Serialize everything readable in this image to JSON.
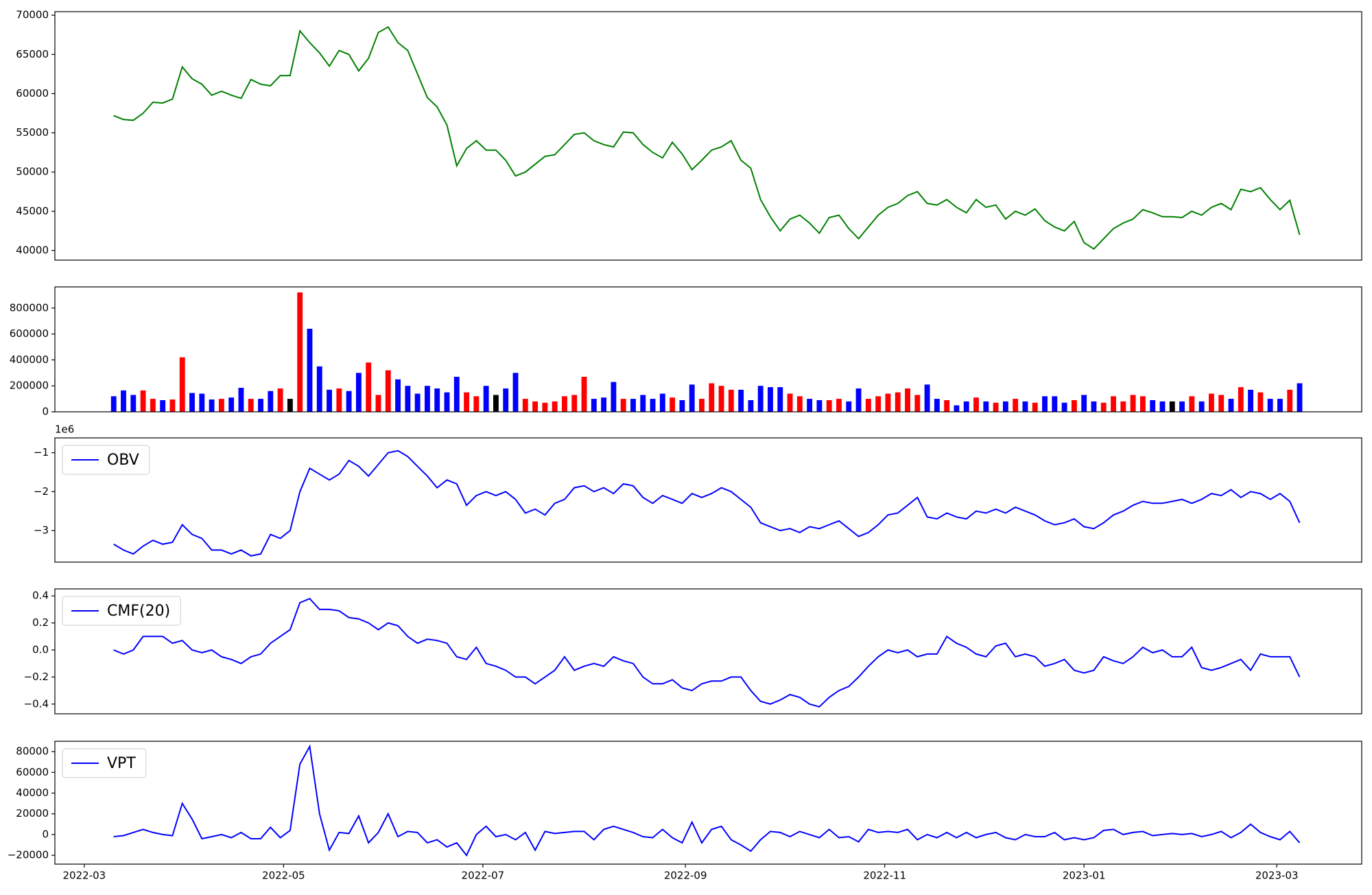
{
  "chart_data": [
    {
      "type": "line",
      "ylim": [
        38770,
        70450
      ],
      "yticks": [
        40000,
        45000,
        50000,
        55000,
        60000,
        65000,
        70000
      ],
      "series": [
        {
          "color": "green",
          "values": [
            57200,
            56700,
            56600,
            57500,
            58900,
            58800,
            59300,
            63400,
            61900,
            61200,
            59800,
            60300,
            59800,
            59400,
            61800,
            61200,
            61000,
            62300,
            62300,
            68000,
            66500,
            65200,
            63500,
            65500,
            65000,
            62900,
            64500,
            67800,
            68500,
            66500,
            65500,
            62500,
            59500,
            58300,
            56000,
            50800,
            53000,
            54000,
            52800,
            52800,
            51500,
            49500,
            50000,
            51000,
            52000,
            52200,
            53500,
            54800,
            55000,
            54000,
            53500,
            53200,
            55100,
            55000,
            53500,
            52500,
            51800,
            53800,
            52300,
            50300,
            51500,
            52800,
            53200,
            54000,
            51500,
            50500,
            46500,
            44300,
            42500,
            44000,
            44500,
            43500,
            42200,
            44200,
            44500,
            42800,
            41500,
            43000,
            44500,
            45500,
            46000,
            47000,
            47500,
            46000,
            45800,
            46500,
            45500,
            44800,
            46500,
            45500,
            45800,
            44000,
            45000,
            44500,
            45300,
            43800,
            43000,
            42500,
            43700,
            41000,
            40200,
            41500,
            42800,
            43500,
            44000,
            45200,
            44800,
            44300,
            44300,
            44200,
            45000,
            44500,
            45500,
            46000,
            45200,
            47800,
            47500,
            48000,
            46500,
            45200,
            46400,
            42000
          ]
        }
      ]
    },
    {
      "type": "bar",
      "ylim": [
        0,
        962700
      ],
      "yticks": [
        0,
        200000,
        400000,
        600000,
        800000
      ],
      "values": [
        120000,
        165000,
        130000,
        165000,
        100000,
        90000,
        95000,
        420000,
        145000,
        140000,
        95000,
        100000,
        110000,
        185000,
        100000,
        100000,
        160000,
        180000,
        100000,
        920000,
        640000,
        350000,
        170000,
        180000,
        160000,
        300000,
        380000,
        130000,
        320000,
        250000,
        200000,
        140000,
        200000,
        180000,
        150000,
        270000,
        150000,
        120000,
        200000,
        130000,
        180000,
        300000,
        100000,
        80000,
        70000,
        80000,
        120000,
        130000,
        270000,
        100000,
        110000,
        230000,
        100000,
        100000,
        130000,
        100000,
        140000,
        110000,
        90000,
        210000,
        100000,
        220000,
        200000,
        170000,
        170000,
        90000,
        200000,
        190000,
        190000,
        140000,
        120000,
        100000,
        90000,
        90000,
        100000,
        80000,
        180000,
        100000,
        120000,
        140000,
        150000,
        180000,
        130000,
        210000,
        100000,
        90000,
        50000,
        80000,
        110000,
        80000,
        70000,
        80000,
        100000,
        80000,
        70000,
        120000,
        120000,
        70000,
        90000,
        130000,
        80000,
        70000,
        120000,
        80000,
        130000,
        120000,
        90000,
        80000,
        80000,
        80000,
        120000,
        80000,
        140000,
        130000,
        100000,
        190000,
        170000,
        150000,
        100000,
        100000,
        170000,
        220000
      ],
      "colors": [
        "blue",
        "blue",
        "blue",
        "red",
        "red",
        "blue",
        "red",
        "red",
        "blue",
        "blue",
        "blue",
        "red",
        "blue",
        "blue",
        "red",
        "blue",
        "blue",
        "red",
        "black",
        "red",
        "blue",
        "blue",
        "blue",
        "red",
        "blue",
        "blue",
        "red",
        "red",
        "red",
        "blue",
        "blue",
        "blue",
        "blue",
        "blue",
        "blue",
        "blue",
        "red",
        "red",
        "blue",
        "black",
        "blue",
        "blue",
        "red",
        "red",
        "red",
        "red",
        "red",
        "red",
        "red",
        "blue",
        "blue",
        "blue",
        "red",
        "blue",
        "blue",
        "blue",
        "blue",
        "red",
        "blue",
        "blue",
        "red",
        "red",
        "red",
        "red",
        "blue",
        "blue",
        "blue",
        "blue",
        "blue",
        "red",
        "red",
        "blue",
        "blue",
        "red",
        "red",
        "blue",
        "blue",
        "red",
        "red",
        "red",
        "red",
        "red",
        "red",
        "blue",
        "blue",
        "red",
        "blue",
        "blue",
        "red",
        "blue",
        "red",
        "blue",
        "red",
        "blue",
        "red",
        "blue",
        "blue",
        "blue",
        "red",
        "blue",
        "blue",
        "red",
        "red",
        "red",
        "red",
        "red",
        "blue",
        "blue",
        "black",
        "blue",
        "red",
        "blue",
        "red",
        "red",
        "blue",
        "red",
        "blue",
        "red",
        "blue",
        "blue",
        "red",
        "blue"
      ]
    },
    {
      "type": "line",
      "offset_label": "1e6",
      "legend": "upper left",
      "ylim": [
        -3810000,
        -620000
      ],
      "yticks": [
        {
          "value": -3000000,
          "label": "−3"
        },
        {
          "value": -2000000,
          "label": "−2"
        },
        {
          "value": -1000000,
          "label": "−1"
        }
      ],
      "series": [
        {
          "name": "OBV",
          "color": "blue",
          "values": [
            -3350000,
            -3500000,
            -3600000,
            -3400000,
            -3250000,
            -3350000,
            -3300000,
            -2850000,
            -3100000,
            -3200000,
            -3500000,
            -3500000,
            -3600000,
            -3500000,
            -3650000,
            -3600000,
            -3100000,
            -3200000,
            -3000000,
            -2000000,
            -1400000,
            -1550000,
            -1700000,
            -1550000,
            -1200000,
            -1350000,
            -1600000,
            -1300000,
            -1000000,
            -950000,
            -1100000,
            -1350000,
            -1600000,
            -1900000,
            -1700000,
            -1800000,
            -2350000,
            -2100000,
            -2000000,
            -2100000,
            -2000000,
            -2200000,
            -2550000,
            -2450000,
            -2600000,
            -2300000,
            -2200000,
            -1900000,
            -1850000,
            -2000000,
            -1900000,
            -2050000,
            -1800000,
            -1850000,
            -2150000,
            -2300000,
            -2100000,
            -2200000,
            -2300000,
            -2050000,
            -2150000,
            -2050000,
            -1900000,
            -2000000,
            -2200000,
            -2400000,
            -2800000,
            -2900000,
            -3000000,
            -2950000,
            -3050000,
            -2900000,
            -2950000,
            -2850000,
            -2750000,
            -2950000,
            -3150000,
            -3050000,
            -2850000,
            -2600000,
            -2550000,
            -2350000,
            -2150000,
            -2650000,
            -2700000,
            -2550000,
            -2650000,
            -2700000,
            -2500000,
            -2550000,
            -2450000,
            -2550000,
            -2400000,
            -2500000,
            -2600000,
            -2750000,
            -2850000,
            -2800000,
            -2700000,
            -2900000,
            -2950000,
            -2800000,
            -2600000,
            -2500000,
            -2350000,
            -2250000,
            -2300000,
            -2300000,
            -2250000,
            -2200000,
            -2300000,
            -2200000,
            -2050000,
            -2100000,
            -1950000,
            -2150000,
            -2000000,
            -2050000,
            -2200000,
            -2050000,
            -2250000,
            -2800000
          ]
        }
      ]
    },
    {
      "type": "line",
      "legend": "upper left",
      "ylim": [
        -0.472,
        0.452
      ],
      "yticks": [
        {
          "value": -0.4,
          "label": "−0.4"
        },
        {
          "value": -0.2,
          "label": "−0.2"
        },
        {
          "value": 0,
          "label": "0.0"
        },
        0.2,
        0.4
      ],
      "series": [
        {
          "name": "CMF(20)",
          "color": "blue",
          "values": [
            0.0,
            -0.03,
            0.0,
            0.1,
            0.1,
            0.1,
            0.05,
            0.07,
            0.0,
            -0.02,
            0.0,
            -0.05,
            -0.07,
            -0.1,
            -0.05,
            -0.03,
            0.05,
            0.1,
            0.15,
            0.35,
            0.38,
            0.3,
            0.3,
            0.29,
            0.24,
            0.23,
            0.2,
            0.15,
            0.2,
            0.18,
            0.1,
            0.05,
            0.08,
            0.07,
            0.05,
            -0.05,
            -0.07,
            0.02,
            -0.1,
            -0.12,
            -0.15,
            -0.2,
            -0.2,
            -0.25,
            -0.2,
            -0.15,
            -0.05,
            -0.15,
            -0.12,
            -0.1,
            -0.12,
            -0.05,
            -0.08,
            -0.1,
            -0.2,
            -0.25,
            -0.25,
            -0.22,
            -0.28,
            -0.3,
            -0.25,
            -0.23,
            -0.23,
            -0.2,
            -0.2,
            -0.3,
            -0.38,
            -0.4,
            -0.37,
            -0.33,
            -0.35,
            -0.4,
            -0.42,
            -0.35,
            -0.3,
            -0.27,
            -0.2,
            -0.12,
            -0.05,
            0.0,
            -0.02,
            0.0,
            -0.05,
            -0.03,
            -0.03,
            0.1,
            0.05,
            0.02,
            -0.03,
            -0.05,
            0.03,
            0.05,
            -0.05,
            -0.03,
            -0.05,
            -0.12,
            -0.1,
            -0.07,
            -0.15,
            -0.17,
            -0.15,
            -0.05,
            -0.08,
            -0.1,
            -0.05,
            0.02,
            -0.02,
            0.0,
            -0.05,
            -0.05,
            0.02,
            -0.13,
            -0.15,
            -0.13,
            -0.1,
            -0.07,
            -0.15,
            -0.03,
            -0.05,
            -0.05,
            -0.05,
            -0.2
          ]
        }
      ]
    },
    {
      "type": "line",
      "legend": "upper left",
      "ylim": [
        -28500,
        90000
      ],
      "yticks": [
        {
          "value": -20000,
          "label": "−20000"
        },
        0,
        20000,
        40000,
        60000,
        80000
      ],
      "series": [
        {
          "name": "VPT",
          "color": "blue",
          "values": [
            -2000,
            -1000,
            2000,
            5000,
            2000,
            0,
            -1000,
            30000,
            15000,
            -4000,
            -2000,
            0,
            -3000,
            2000,
            -4000,
            -4000,
            7000,
            -3000,
            4000,
            68000,
            85000,
            20000,
            -15000,
            2000,
            1000,
            18000,
            -8000,
            2000,
            20000,
            -2000,
            3000,
            2000,
            -8000,
            -5000,
            -12000,
            -8000,
            -20000,
            0,
            8000,
            -2000,
            0,
            -5000,
            2000,
            -15000,
            3000,
            1000,
            2000,
            3000,
            3000,
            -5000,
            5000,
            8000,
            5000,
            2000,
            -2000,
            -3000,
            5000,
            -3000,
            -8000,
            12000,
            -8000,
            5000,
            8000,
            -5000,
            -10000,
            -16000,
            -5000,
            3000,
            2000,
            -2000,
            3000,
            0,
            -3000,
            5000,
            -3000,
            -2000,
            -7000,
            5000,
            2000,
            3000,
            2000,
            5000,
            -5000,
            0,
            -3000,
            2000,
            -3000,
            2000,
            -3000,
            0,
            2000,
            -3000,
            -5000,
            0,
            -2000,
            -2000,
            2000,
            -5000,
            -3000,
            -5000,
            -3000,
            4000,
            5000,
            0,
            2000,
            3000,
            -1000,
            0,
            1000,
            0,
            1000,
            -2000,
            0,
            3000,
            -3000,
            2000,
            10000,
            2000,
            -2000,
            -5000,
            3000,
            -8000
          ]
        }
      ],
      "xlim": [
        "2022-02-20",
        "2023-03-27"
      ],
      "xticks": [
        {
          "value": "2022-03-01",
          "label": "2022-03"
        },
        {
          "value": "2022-05-01",
          "label": "2022-05"
        },
        {
          "value": "2022-07-01",
          "label": "2022-07"
        },
        {
          "value": "2022-09-01",
          "label": "2022-09"
        },
        {
          "value": "2022-11-01",
          "label": "2022-11"
        },
        {
          "value": "2023-01-01",
          "label": "2023-01"
        },
        {
          "value": "2023-03-01",
          "label": "2023-03"
        }
      ],
      "x": [
        "2022-03-10",
        "2022-03-13",
        "2022-03-16",
        "2022-03-19",
        "2022-03-22",
        "2022-03-25",
        "2022-03-28",
        "2022-03-31",
        "2022-04-03",
        "2022-04-06",
        "2022-04-09",
        "2022-04-12",
        "2022-04-15",
        "2022-04-18",
        "2022-04-21",
        "2022-04-24",
        "2022-04-27",
        "2022-04-30",
        "2022-05-03",
        "2022-05-06",
        "2022-05-09",
        "2022-05-12",
        "2022-05-15",
        "2022-05-18",
        "2022-05-21",
        "2022-05-24",
        "2022-05-27",
        "2022-05-30",
        "2022-06-02",
        "2022-06-05",
        "2022-06-08",
        "2022-06-11",
        "2022-06-14",
        "2022-06-17",
        "2022-06-20",
        "2022-06-23",
        "2022-06-26",
        "2022-06-29",
        "2022-07-02",
        "2022-07-05",
        "2022-07-08",
        "2022-07-11",
        "2022-07-14",
        "2022-07-17",
        "2022-07-20",
        "2022-07-23",
        "2022-07-26",
        "2022-07-29",
        "2022-08-01",
        "2022-08-04",
        "2022-08-07",
        "2022-08-10",
        "2022-08-13",
        "2022-08-16",
        "2022-08-19",
        "2022-08-22",
        "2022-08-25",
        "2022-08-28",
        "2022-08-31",
        "2022-09-03",
        "2022-09-06",
        "2022-09-09",
        "2022-09-12",
        "2022-09-15",
        "2022-09-18",
        "2022-09-21",
        "2022-09-24",
        "2022-09-27",
        "2022-09-30",
        "2022-10-03",
        "2022-10-06",
        "2022-10-09",
        "2022-10-12",
        "2022-10-15",
        "2022-10-18",
        "2022-10-21",
        "2022-10-24",
        "2022-10-27",
        "2022-10-30",
        "2022-11-02",
        "2022-11-05",
        "2022-11-08",
        "2022-11-11",
        "2022-11-14",
        "2022-11-17",
        "2022-11-20",
        "2022-11-23",
        "2022-11-26",
        "2022-11-29",
        "2022-12-02",
        "2022-12-05",
        "2022-12-08",
        "2022-12-11",
        "2022-12-14",
        "2022-12-17",
        "2022-12-20",
        "2022-12-23",
        "2022-12-26",
        "2022-12-29",
        "2023-01-01",
        "2023-01-04",
        "2023-01-07",
        "2023-01-10",
        "2023-01-13",
        "2023-01-16",
        "2023-01-19",
        "2023-01-22",
        "2023-01-25",
        "2023-01-28",
        "2023-01-31",
        "2023-02-03",
        "2023-02-06",
        "2023-02-09",
        "2023-02-12",
        "2023-02-15",
        "2023-02-18",
        "2023-02-21",
        "2023-02-24",
        "2023-02-27",
        "2023-03-02",
        "2023-03-05",
        "2023-03-08"
      ]
    }
  ]
}
